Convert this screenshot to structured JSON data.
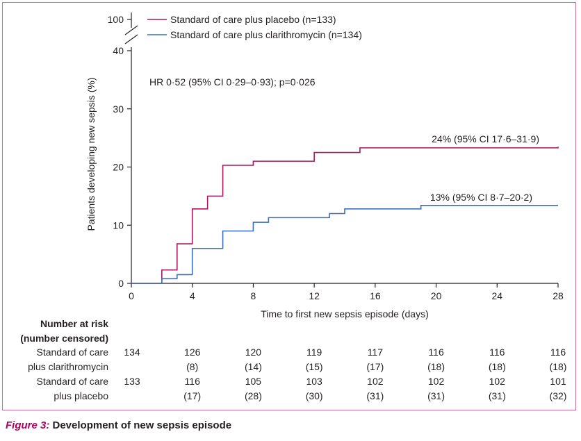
{
  "chart_data": {
    "type": "line",
    "step": true,
    "xlabel": "Time to first new sepsis episode (days)",
    "ylabel": "Patients developing new sepsis (%)",
    "xlim": [
      0,
      28
    ],
    "ylim": [
      0,
      40
    ],
    "x_ticks": [
      0,
      4,
      8,
      12,
      16,
      20,
      24,
      28
    ],
    "y_ticks": [
      0,
      10,
      20,
      30,
      40
    ],
    "y_break_label": "100",
    "annotation": "HR 0·52 (95% CI 0·29–0·93); p=0·026",
    "series": [
      {
        "name": "Standard of care plus placebo (n=133)",
        "color": "#a8185a",
        "end_label": "24% (95% CI 17·6–31·9)",
        "x": [
          0,
          2,
          3,
          4,
          5,
          6,
          8,
          12,
          15,
          28
        ],
        "y": [
          0,
          2.3,
          6.8,
          12.8,
          15.0,
          20.3,
          21.0,
          22.5,
          23.3,
          23.5
        ]
      },
      {
        "name": "Standard of care plus clarithromycin (n=134)",
        "color": "#3b6fb6",
        "end_label": "13% (95% CI 8·7–20·2)",
        "x": [
          0,
          2,
          3,
          4,
          6,
          8,
          9,
          13,
          14,
          19,
          28
        ],
        "y": [
          0,
          0.8,
          1.5,
          6.0,
          9.0,
          10.5,
          11.3,
          12.0,
          12.8,
          13.4,
          13.4
        ]
      }
    ]
  },
  "risk_table": {
    "header_line1": "Number at risk",
    "header_line2": "(number censored)",
    "rows": [
      {
        "label1": "Standard of care",
        "label2": "plus clarithromycin",
        "at_risk": [
          "134",
          "126",
          "120",
          "119",
          "117",
          "116",
          "116",
          "116"
        ],
        "censored": [
          "",
          "(8)",
          "(14)",
          "(15)",
          "(17)",
          "(18)",
          "(18)",
          "(18)"
        ]
      },
      {
        "label1": "Standard of care",
        "label2": "plus placebo",
        "at_risk": [
          "133",
          "116",
          "105",
          "103",
          "102",
          "102",
          "102",
          "101"
        ],
        "censored": [
          "",
          "(17)",
          "(28)",
          "(30)",
          "(31)",
          "(31)",
          "(31)",
          "(32)"
        ]
      }
    ]
  },
  "caption": {
    "label": "Figure 3:",
    "text": " Development of new sepsis episode"
  }
}
